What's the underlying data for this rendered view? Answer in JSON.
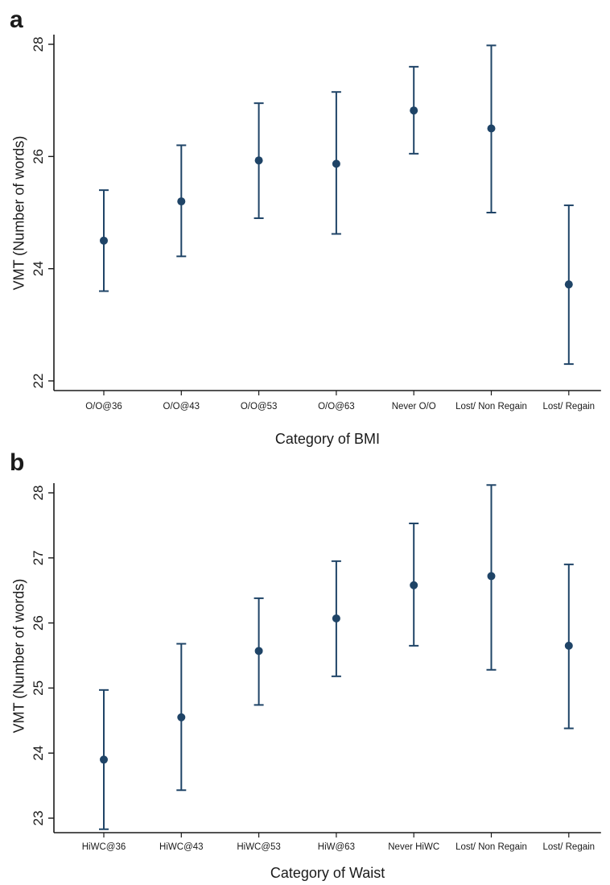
{
  "colors": {
    "marker": "#1f4467",
    "axis": "#1a1a1a"
  },
  "chart_data": [
    {
      "panel": "a",
      "type": "scatter",
      "subtype": "errorbar",
      "ylabel": "VMT (Number of words)",
      "xlabel": "Category of BMI",
      "ylim": [
        22,
        28
      ],
      "yticks": [
        22,
        24,
        26,
        28
      ],
      "categories": [
        "O/O@36",
        "O/O@43",
        "O/O@53",
        "O/O@63",
        "Never O/O",
        "Lost/ Non Regain",
        "Lost/ Regain"
      ],
      "values": [
        24.5,
        25.2,
        25.93,
        25.87,
        26.82,
        26.5,
        23.72
      ],
      "ci_low": [
        23.6,
        24.22,
        24.9,
        24.62,
        26.05,
        25.0,
        22.3
      ],
      "ci_high": [
        25.4,
        26.2,
        26.95,
        27.15,
        27.6,
        27.98,
        25.13
      ]
    },
    {
      "panel": "b",
      "type": "scatter",
      "subtype": "errorbar",
      "ylabel": "VMT (Number of words)",
      "xlabel": "Category of Waist",
      "ylim": [
        23,
        28
      ],
      "yticks": [
        23,
        24,
        25,
        26,
        27,
        28
      ],
      "categories": [
        "HiWC@36",
        "HiWC@43",
        "HiWC@53",
        "HiW@63",
        "Never HiWC",
        "Lost/ Non Regain",
        "Lost/ Regain"
      ],
      "values": [
        23.9,
        24.55,
        25.57,
        26.07,
        26.58,
        26.72,
        25.65
      ],
      "ci_low": [
        22.83,
        23.43,
        24.74,
        25.18,
        25.65,
        25.28,
        24.38
      ],
      "ci_high": [
        24.97,
        25.68,
        26.38,
        26.95,
        27.53,
        28.12,
        26.9
      ]
    }
  ],
  "panels": {
    "a": {
      "letter": "a"
    },
    "b": {
      "letter": "b"
    }
  }
}
